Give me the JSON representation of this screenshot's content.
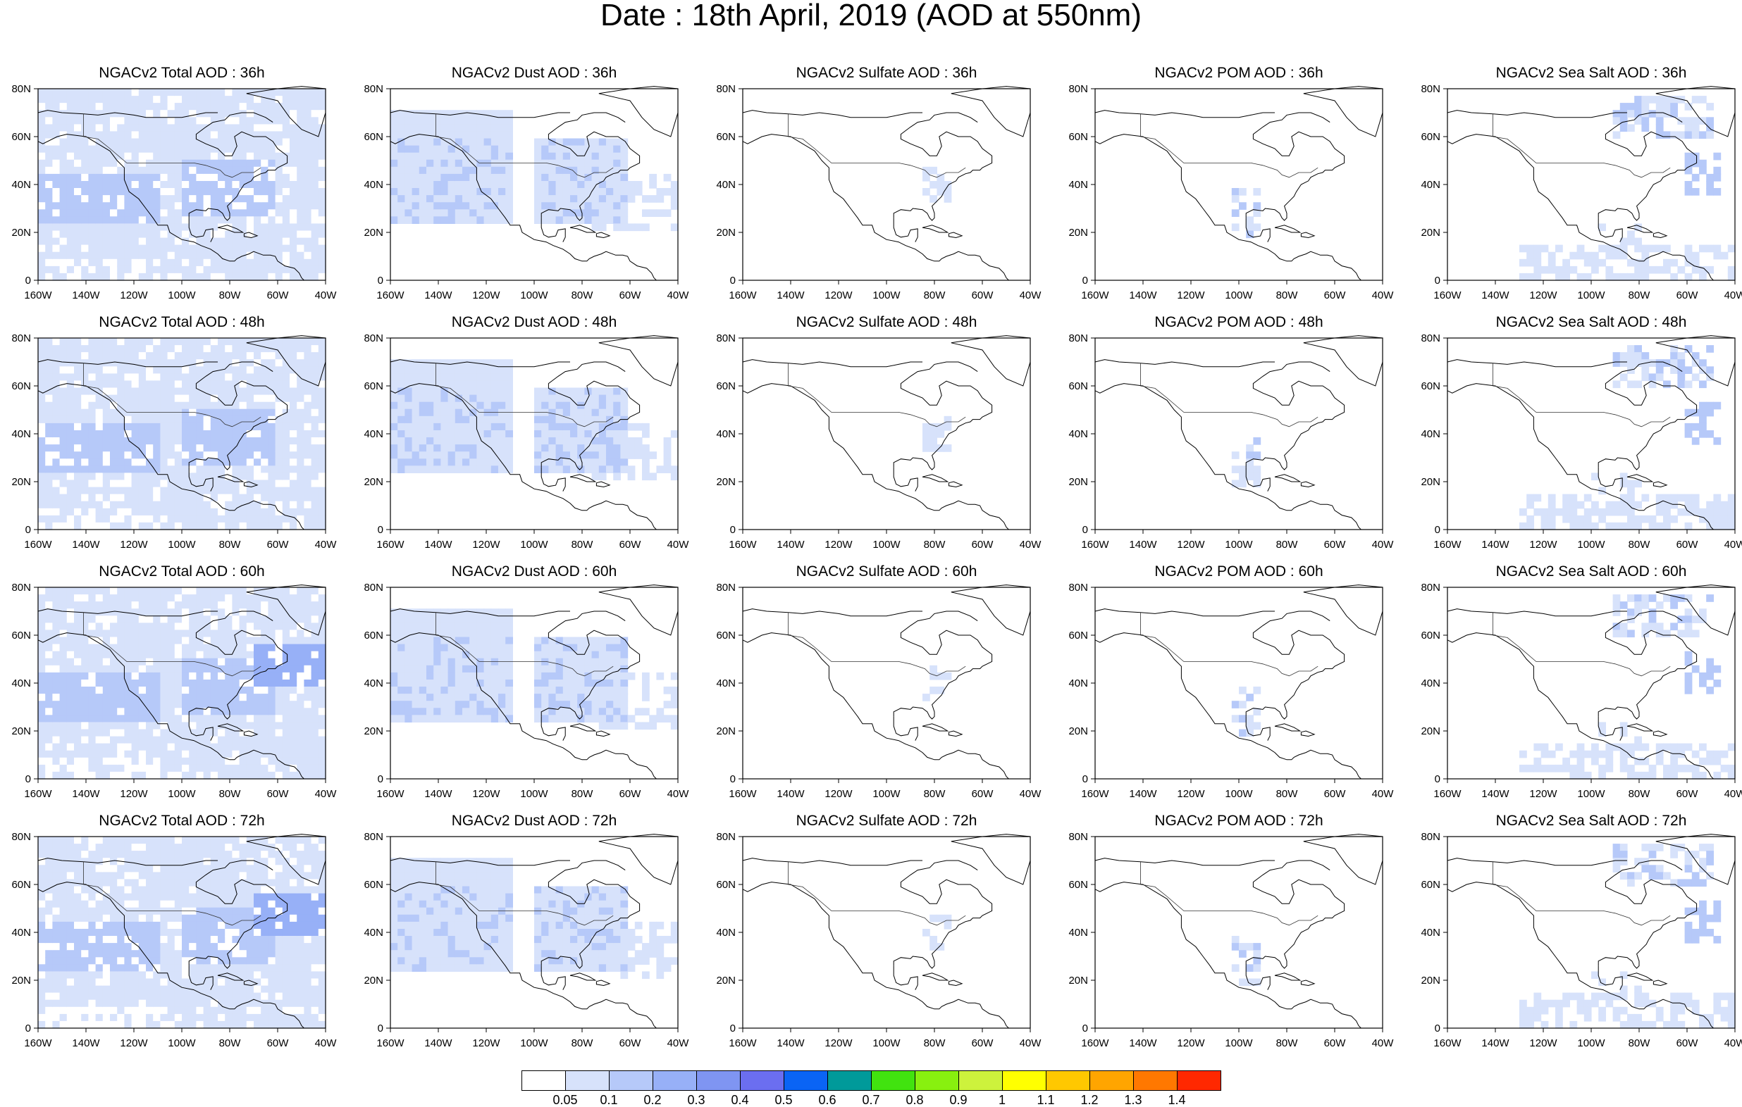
{
  "title": "Date : 18th April, 2019 (AOD at 550nm)",
  "colors": {
    "land_line": "#000000",
    "palette": [
      "#ffffff",
      "#d7e2fb",
      "#b6c9f9",
      "#97b0f7",
      "#7f95f2",
      "#6b6ef0",
      "#0a64f5",
      "#009a9a",
      "#41e30f",
      "#88f00f",
      "#cdf23c",
      "#ffff00",
      "#ffc800",
      "#ffa500",
      "#ff7800",
      "#ff2800"
    ]
  },
  "colorbar": {
    "labels": [
      "0.05",
      "0.1",
      "0.2",
      "0.3",
      "0.4",
      "0.5",
      "0.6",
      "0.7",
      "0.8",
      "0.9",
      "1",
      "1.1",
      "1.2",
      "1.3",
      "1.4"
    ]
  },
  "axes": {
    "x_ticks": [
      "160W",
      "140W",
      "120W",
      "100W",
      "80W",
      "60W",
      "40W"
    ],
    "y_ticks": [
      "80N",
      "60N",
      "40N",
      "20N",
      "0"
    ],
    "lon_range": [
      -160,
      -40
    ],
    "lat_range": [
      0,
      80
    ]
  },
  "panels": [
    {
      "title": "NGACv2 Total AOD : 36h",
      "species": "total"
    },
    {
      "title": "NGACv2 Dust AOD : 36h",
      "species": "dust"
    },
    {
      "title": "NGACv2 Sulfate AOD : 36h",
      "species": "sulfate"
    },
    {
      "title": "NGACv2 POM AOD : 36h",
      "species": "pom"
    },
    {
      "title": "NGACv2 Sea Salt AOD : 36h",
      "species": "seasalt"
    },
    {
      "title": "NGACv2 Total AOD : 48h",
      "species": "total"
    },
    {
      "title": "NGACv2 Dust AOD : 48h",
      "species": "dust"
    },
    {
      "title": "NGACv2 Sulfate AOD : 48h",
      "species": "sulfate"
    },
    {
      "title": "NGACv2 POM AOD : 48h",
      "species": "pom"
    },
    {
      "title": "NGACv2 Sea Salt AOD : 48h",
      "species": "seasalt"
    },
    {
      "title": "NGACv2 Total AOD : 60h",
      "species": "total"
    },
    {
      "title": "NGACv2 Dust AOD : 60h",
      "species": "dust"
    },
    {
      "title": "NGACv2 Sulfate AOD : 60h",
      "species": "sulfate"
    },
    {
      "title": "NGACv2 POM AOD : 60h",
      "species": "pom"
    },
    {
      "title": "NGACv2 Sea Salt AOD : 60h",
      "species": "seasalt"
    },
    {
      "title": "NGACv2 Total AOD : 72h",
      "species": "total"
    },
    {
      "title": "NGACv2 Dust AOD : 72h",
      "species": "dust"
    },
    {
      "title": "NGACv2 Sulfate AOD : 72h",
      "species": "sulfate"
    },
    {
      "title": "NGACv2 POM AOD : 72h",
      "species": "pom"
    },
    {
      "title": "NGACv2 Sea Salt  AOD : 72h",
      "species": "seasalt"
    }
  ]
}
